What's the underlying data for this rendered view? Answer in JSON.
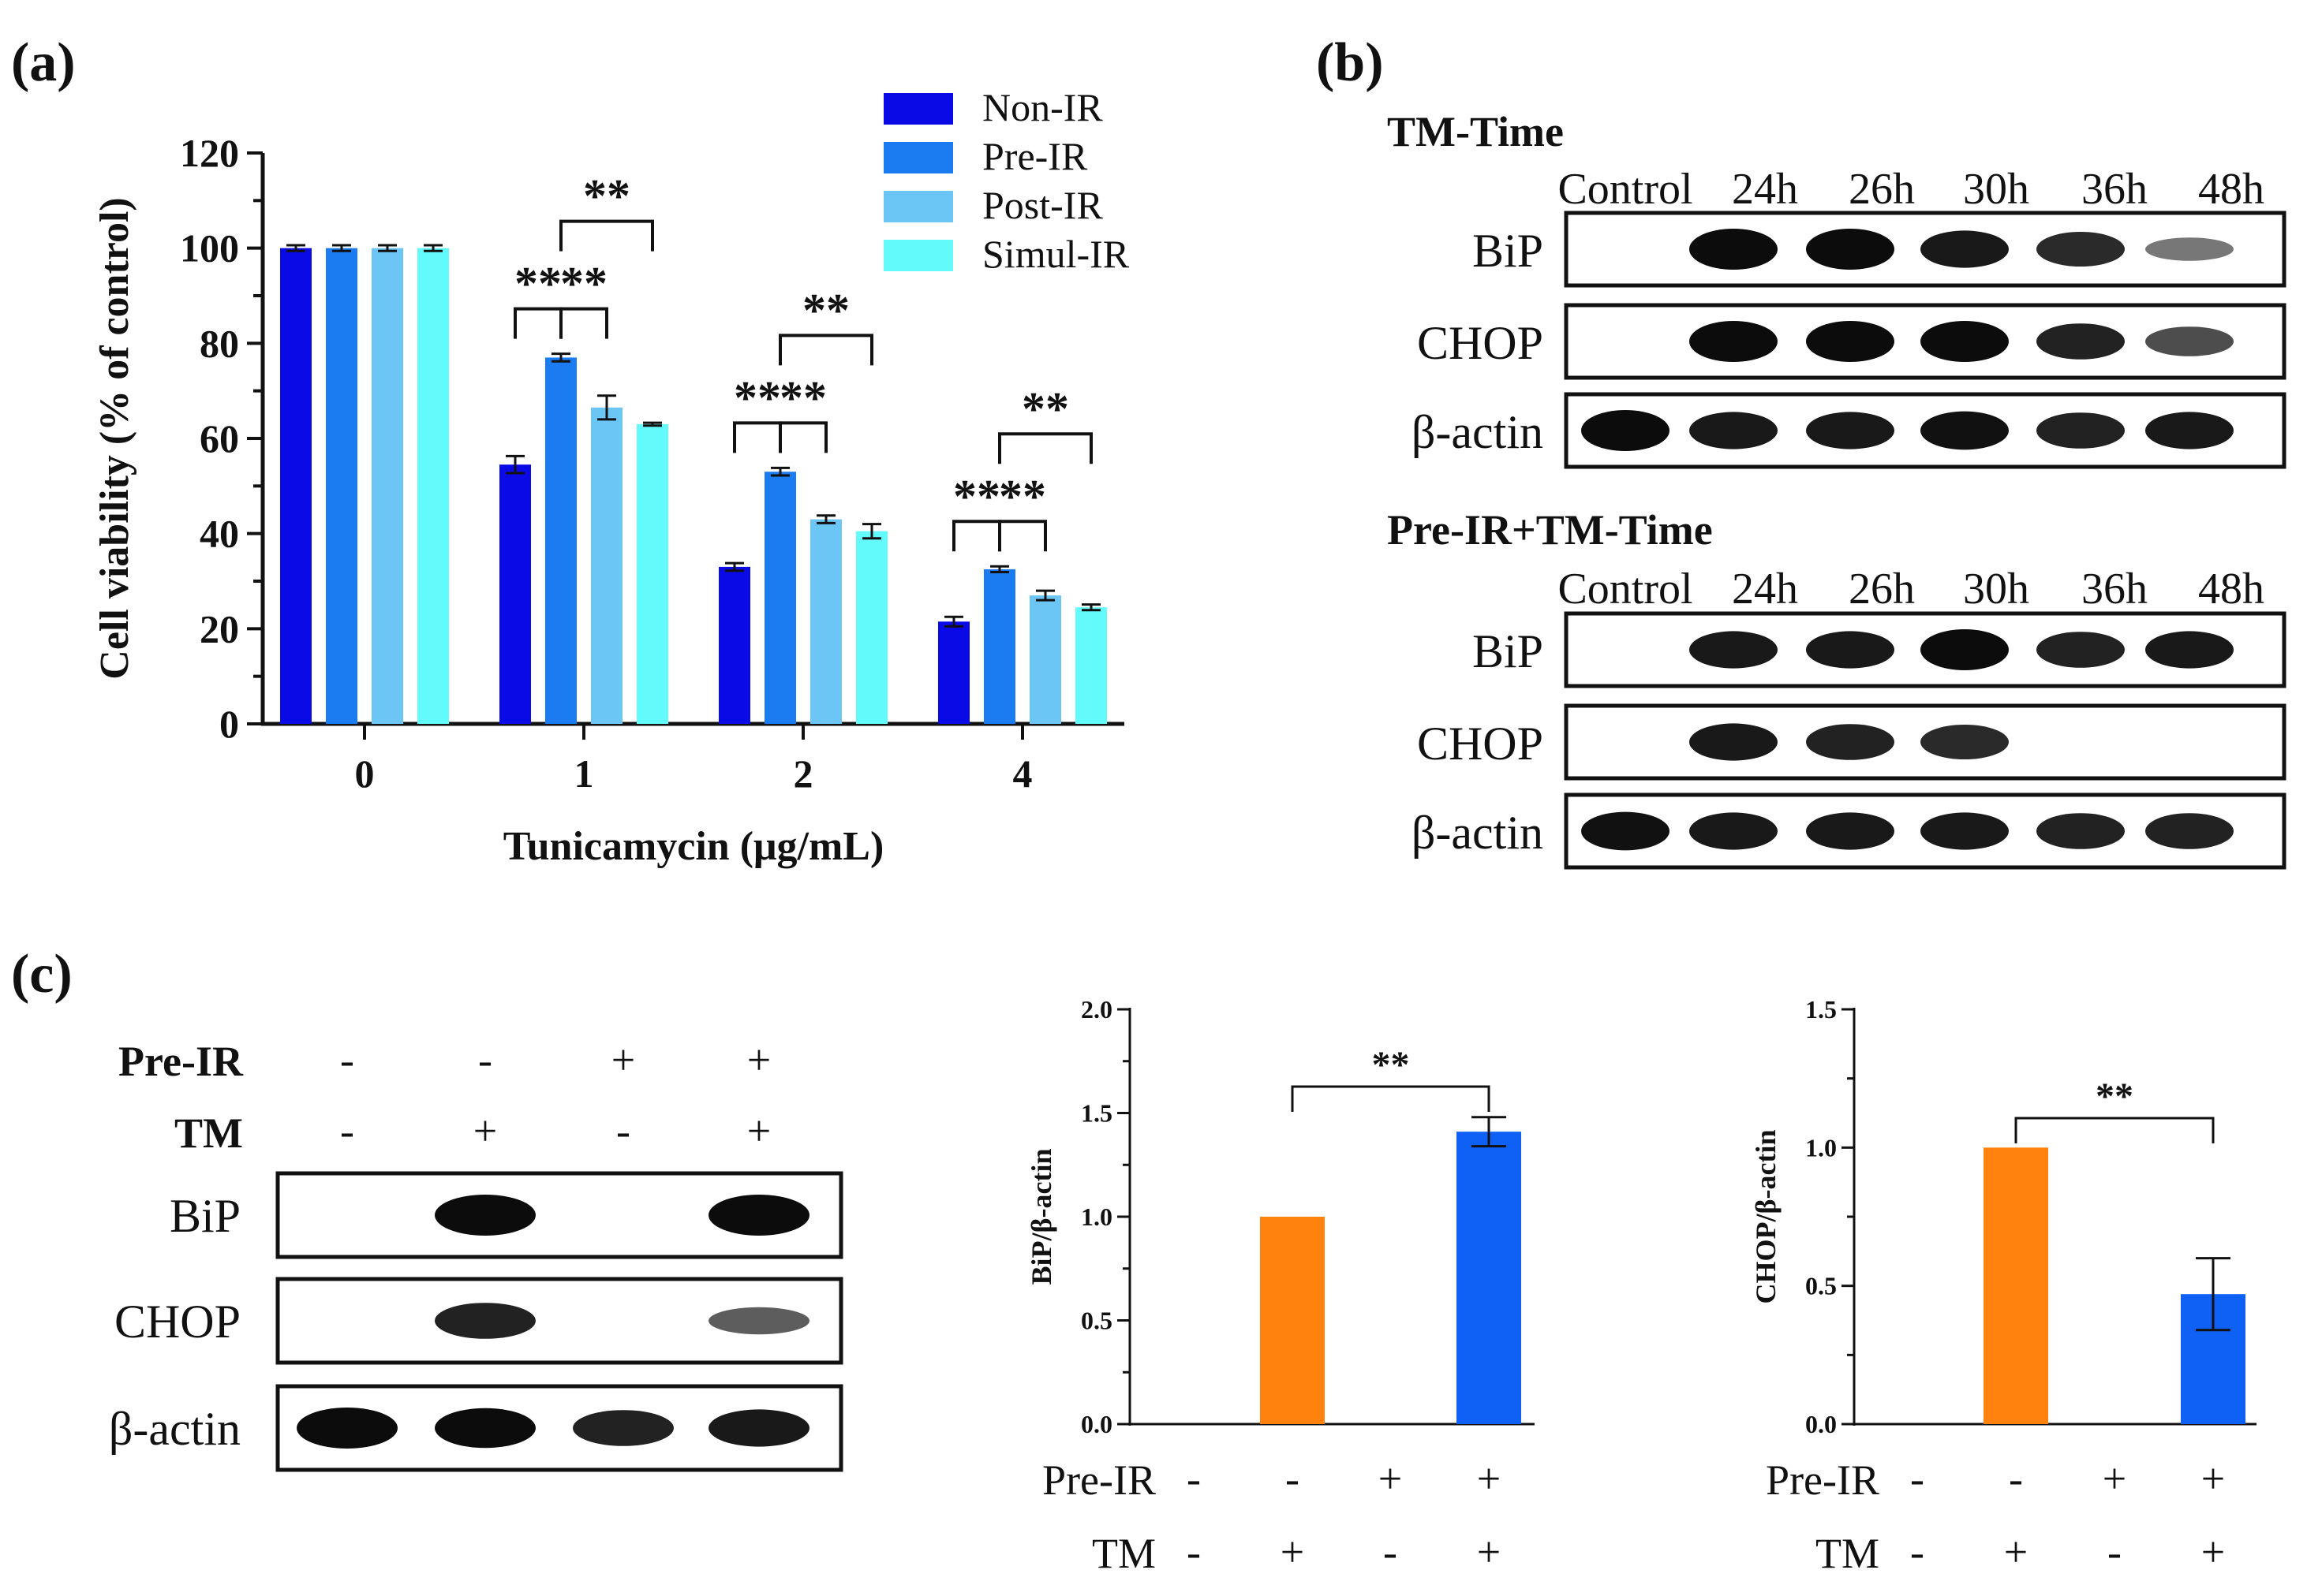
{
  "panel_labels": {
    "a": "(a)",
    "b": "(b)",
    "c": "(c)"
  },
  "colors": {
    "non_ir": "#0a0ae6",
    "pre_ir": "#1a7cf0",
    "post_ir": "#6cc6f5",
    "simul_ir": "#62fafa",
    "control_bar": "#ff820f",
    "treated_bar": "#0f60f5",
    "band": "#0c0c0c"
  },
  "chart_data": [
    {
      "id": "a",
      "type": "bar",
      "title": "",
      "xlabel": "Tunicamycin (μg/mL)",
      "ylabel": "Cell viability (% of control)",
      "ylim": [
        0,
        120
      ],
      "yticks": [
        0,
        20,
        40,
        60,
        80,
        100,
        120
      ],
      "categories": [
        "0",
        "1",
        "2",
        "4"
      ],
      "series": [
        {
          "name": "Non-IR",
          "values": [
            100,
            54.5,
            33,
            21.5
          ],
          "errors": [
            0.6,
            1.8,
            0.8,
            1.0
          ]
        },
        {
          "name": "Pre-IR",
          "values": [
            100,
            77,
            53,
            32.5
          ],
          "errors": [
            0.6,
            0.8,
            0.8,
            0.6
          ]
        },
        {
          "name": "Post-IR",
          "values": [
            100,
            66.5,
            43,
            27
          ],
          "errors": [
            0.6,
            2.5,
            0.8,
            1.0
          ]
        },
        {
          "name": "Simul-IR",
          "values": [
            100,
            63,
            40.5,
            24.5
          ],
          "errors": [
            0.6,
            0.3,
            1.5,
            0.6
          ]
        }
      ],
      "legend": "top-right",
      "significance": [
        {
          "category": 1,
          "from": 0,
          "to": 1,
          "label": "**"
        },
        {
          "category": 1,
          "from": 1,
          "to": 2,
          "label": "**"
        },
        {
          "category": 1,
          "from": 1,
          "to": 3,
          "label": "**"
        },
        {
          "category": 2,
          "from": 0,
          "to": 1,
          "label": "**"
        },
        {
          "category": 2,
          "from": 1,
          "to": 2,
          "label": "**"
        },
        {
          "category": 2,
          "from": 1,
          "to": 3,
          "label": "**"
        },
        {
          "category": 3,
          "from": 0,
          "to": 1,
          "label": "**"
        },
        {
          "category": 3,
          "from": 1,
          "to": 2,
          "label": "**"
        },
        {
          "category": 3,
          "from": 1,
          "to": 3,
          "label": "**"
        }
      ]
    },
    {
      "id": "c-bip",
      "type": "bar",
      "title": "",
      "xlabel": "",
      "ylabel": "BiP/β-actin",
      "ylim": [
        0,
        2.0
      ],
      "yticks": [
        "0.0",
        "0.5",
        "1.0",
        "1.5",
        "2.0"
      ],
      "values": [
        null,
        1.0,
        null,
        1.41
      ],
      "errors": [
        null,
        0,
        null,
        0.07
      ],
      "significance": {
        "from": 1,
        "to": 3,
        "label": "**"
      },
      "conditions": {
        "pre_ir": [
          "-",
          "-",
          "+",
          "+"
        ],
        "tm": [
          "-",
          "+",
          "-",
          "+"
        ]
      }
    },
    {
      "id": "c-chop",
      "type": "bar",
      "title": "",
      "xlabel": "",
      "ylabel": "CHOP/β-actin",
      "ylim": [
        0,
        1.5
      ],
      "yticks": [
        "0.0",
        "0.5",
        "1.0",
        "1.5"
      ],
      "values": [
        null,
        1.0,
        null,
        0.47
      ],
      "errors": [
        null,
        0,
        null,
        0.13
      ],
      "significance": {
        "from": 1,
        "to": 3,
        "label": "**"
      },
      "conditions": {
        "pre_ir": [
          "-",
          "-",
          "+",
          "+"
        ],
        "tm": [
          "-",
          "+",
          "-",
          "+"
        ]
      }
    }
  ],
  "condition_labels": {
    "pre_ir": "Pre-IR",
    "tm": "TM"
  },
  "blots_b": [
    {
      "title": "TM-Time",
      "columns": [
        "Control",
        "24h",
        "26h",
        "30h",
        "36h",
        "48h"
      ],
      "rows": [
        {
          "name": "BiP",
          "intensity": [
            0,
            1,
            1,
            0.85,
            0.75,
            0.3
          ]
        },
        {
          "name": "CHOP",
          "intensity": [
            0,
            1,
            1,
            1,
            0.8,
            0.55
          ]
        },
        {
          "name": "β-actin",
          "intensity": [
            1,
            0.85,
            0.85,
            0.9,
            0.8,
            0.85
          ]
        }
      ]
    },
    {
      "title": "Pre-IR+TM-Time",
      "columns": [
        "Control",
        "24h",
        "26h",
        "30h",
        "36h",
        "48h"
      ],
      "rows": [
        {
          "name": "BiP",
          "intensity": [
            0,
            0.85,
            0.85,
            1,
            0.8,
            0.85
          ]
        },
        {
          "name": "CHOP",
          "intensity": [
            0,
            0.85,
            0.8,
            0.75,
            0,
            0
          ]
        },
        {
          "name": "β-actin",
          "intensity": [
            0.9,
            0.85,
            0.85,
            0.85,
            0.8,
            0.8
          ]
        }
      ]
    }
  ],
  "blot_c": {
    "conditions": {
      "pre_ir": [
        "-",
        "-",
        "+",
        "+"
      ],
      "tm": [
        "-",
        "+",
        "-",
        "+"
      ]
    },
    "rows": [
      {
        "name": "BiP",
        "intensity": [
          0,
          1,
          0,
          1
        ]
      },
      {
        "name": "CHOP",
        "intensity": [
          0,
          0.8,
          0,
          0.45
        ]
      },
      {
        "name": "β-actin",
        "intensity": [
          1,
          0.95,
          0.8,
          0.85
        ]
      }
    ]
  }
}
